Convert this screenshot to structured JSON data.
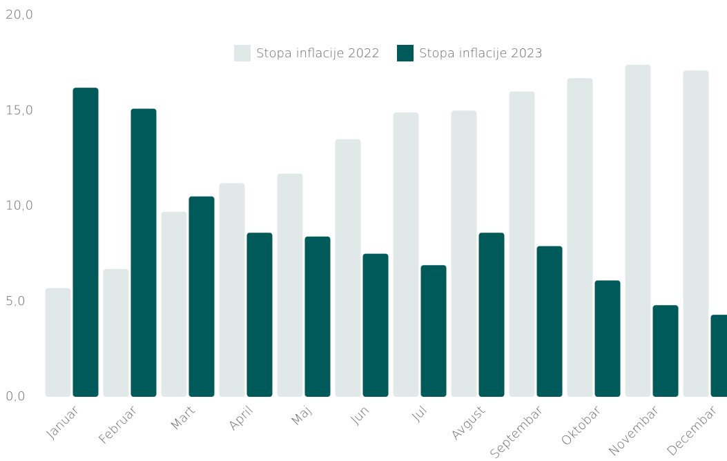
{
  "chart_data": {
    "type": "bar",
    "categories": [
      "Januar",
      "Februar",
      "Mart",
      "April",
      "Maj",
      "Jun",
      "Jul",
      "Avgust",
      "Septembar",
      "Oktobar",
      "Novembar",
      "Decembar"
    ],
    "series": [
      {
        "name": "Stopa inflacije 2022",
        "color": "#e1e8e8",
        "values": [
          5.7,
          6.7,
          9.7,
          11.2,
          11.7,
          13.5,
          14.9,
          15.0,
          16.0,
          16.7,
          17.4,
          17.1
        ]
      },
      {
        "name": "Stopa inflacije 2023",
        "color": "#005a5a",
        "values": [
          16.2,
          15.1,
          10.5,
          8.6,
          8.4,
          7.5,
          6.9,
          8.6,
          7.9,
          6.1,
          4.8,
          4.3
        ]
      }
    ],
    "ylim": [
      0,
      20
    ],
    "yticks": [
      {
        "value": 0,
        "label": "0,0"
      },
      {
        "value": 5,
        "label": "5,0"
      },
      {
        "value": 10,
        "label": "10,0"
      },
      {
        "value": 15,
        "label": "15,0"
      },
      {
        "value": 20,
        "label": "20,0"
      }
    ],
    "grid": false,
    "legend": "top"
  }
}
